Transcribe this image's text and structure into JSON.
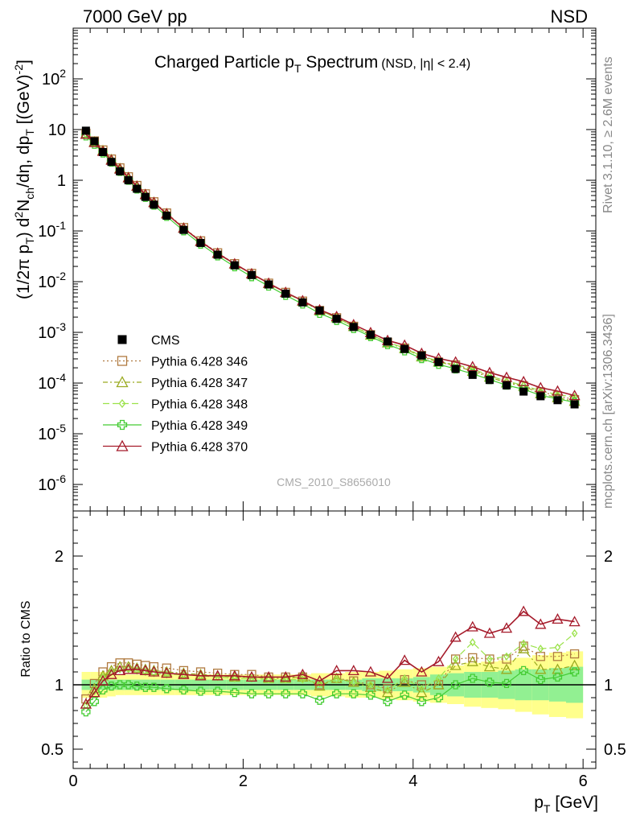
{
  "header": {
    "left": "7000 GeV pp",
    "right": "NSD"
  },
  "side_text": {
    "rivet": "Rivet 3.1.10, ≥ 2.6M events",
    "mcplots": "mcplots.cern.ch [arXiv:1306.3436]"
  },
  "watermark": "CMS_2010_S8656010",
  "chart_data": {
    "type": "scatter",
    "title": {
      "main": "Charged Particle p",
      "sub": "T",
      "rest": " Spectrum",
      "extra": "(NSD, |η| < 2.4)"
    },
    "xlabel": {
      "main": "p",
      "sub": "T",
      "rest": " [GeV]"
    },
    "ylabel": "(1/2π p_T) d²N_ch/dη, dp_T [(GeV)⁻²]",
    "ratio_ylabel": "Ratio to CMS",
    "xlim": [
      0,
      6.15
    ],
    "ylim_log": [
      3e-07,
      1000
    ],
    "ratio_ylim": [
      0.35,
      2.35
    ],
    "x_ticks": [
      0,
      2,
      4,
      6
    ],
    "y_ticks": [
      "10^-6",
      "10^-5",
      "10^-4",
      "10^-3",
      "10^-2",
      "10^-1",
      "1",
      "10",
      "10^2"
    ],
    "ratio_ticks": [
      "0.5",
      "1",
      "2"
    ],
    "x": [
      0.15,
      0.25,
      0.35,
      0.45,
      0.55,
      0.65,
      0.75,
      0.85,
      0.95,
      1.1,
      1.3,
      1.5,
      1.7,
      1.9,
      2.1,
      2.3,
      2.5,
      2.7,
      2.9,
      3.1,
      3.3,
      3.5,
      3.7,
      3.9,
      4.1,
      4.3,
      4.5,
      4.7,
      4.9,
      5.1,
      5.3,
      5.5,
      5.7,
      5.9
    ],
    "cms": [
      9.5,
      5.9,
      3.6,
      2.3,
      1.5,
      1.0,
      0.68,
      0.47,
      0.33,
      0.2,
      0.105,
      0.058,
      0.034,
      0.021,
      0.0135,
      0.0088,
      0.0058,
      0.0039,
      0.0027,
      0.00185,
      0.00128,
      0.0009,
      0.00066,
      0.00047,
      0.00035,
      0.00026,
      0.00019,
      0.000145,
      0.000115,
      9e-05,
      6.8e-05,
      5.5e-05,
      4.6e-05,
      3.8e-05
    ],
    "band_yellow": [
      0.1,
      0.1,
      0.1,
      0.09,
      0.08,
      0.08,
      0.08,
      0.08,
      0.08,
      0.08,
      0.08,
      0.08,
      0.08,
      0.08,
      0.08,
      0.08,
      0.08,
      0.08,
      0.09,
      0.09,
      0.1,
      0.1,
      0.11,
      0.12,
      0.13,
      0.14,
      0.15,
      0.17,
      0.18,
      0.19,
      0.21,
      0.23,
      0.25,
      0.26
    ],
    "band_green": [
      0.04,
      0.04,
      0.04,
      0.04,
      0.04,
      0.04,
      0.04,
      0.04,
      0.04,
      0.04,
      0.04,
      0.04,
      0.04,
      0.04,
      0.04,
      0.04,
      0.04,
      0.04,
      0.04,
      0.04,
      0.04,
      0.05,
      0.05,
      0.05,
      0.06,
      0.08,
      0.09,
      0.1,
      0.1,
      0.11,
      0.12,
      0.12,
      0.13,
      0.14
    ],
    "series": [
      {
        "name": "Pythia 6.428 346",
        "color": "#b07a40",
        "marker": "square",
        "dash": "2,3",
        "ratio": [
          0.89,
          1.01,
          1.1,
          1.14,
          1.17,
          1.17,
          1.16,
          1.15,
          1.14,
          1.13,
          1.11,
          1.1,
          1.09,
          1.08,
          1.08,
          1.06,
          1.06,
          1.06,
          1.0,
          1.05,
          1.03,
          1.0,
          0.97,
          1.04,
          1.0,
          1.0,
          1.2,
          1.21,
          1.2,
          1.2,
          1.3,
          1.22,
          1.22,
          1.24
        ]
      },
      {
        "name": "Pythia 6.428 347",
        "color": "#9aaa20",
        "marker": "triangle",
        "dash": "6,3,2,3",
        "ratio": [
          0.85,
          0.97,
          1.07,
          1.11,
          1.14,
          1.14,
          1.13,
          1.12,
          1.11,
          1.1,
          1.09,
          1.08,
          1.07,
          1.06,
          1.06,
          1.05,
          1.05,
          1.06,
          0.99,
          1.05,
          1.02,
          0.98,
          0.94,
          1.02,
          0.94,
          1.0,
          1.15,
          1.18,
          1.14,
          1.12,
          1.28,
          1.12,
          1.12,
          1.15
        ]
      },
      {
        "name": "Pythia 6.428 348",
        "color": "#9be24a",
        "marker": "diamond",
        "dash": "8,4",
        "ratio": [
          0.84,
          0.95,
          1.06,
          1.1,
          1.12,
          1.12,
          1.11,
          1.1,
          1.09,
          1.08,
          1.08,
          1.07,
          1.06,
          1.05,
          1.05,
          1.04,
          1.04,
          1.04,
          1.01,
          1.04,
          1.02,
          1.0,
          0.96,
          1.05,
          0.97,
          1.05,
          1.2,
          1.33,
          1.2,
          1.22,
          1.32,
          1.28,
          1.29,
          1.4
        ]
      },
      {
        "name": "Pythia 6.428 349",
        "color": "#44cc33",
        "marker": "cross",
        "dash": "",
        "ratio": [
          0.79,
          0.87,
          0.96,
          0.99,
          1.0,
          1.0,
          0.99,
          0.98,
          0.98,
          0.97,
          0.96,
          0.95,
          0.95,
          0.94,
          0.93,
          0.93,
          0.93,
          0.93,
          0.88,
          0.93,
          0.93,
          0.92,
          0.87,
          0.92,
          0.87,
          0.9,
          1.0,
          1.05,
          1.02,
          1.01,
          1.11,
          1.04,
          1.06,
          1.1
        ]
      },
      {
        "name": "Pythia 6.428 370",
        "color": "#a51a2a",
        "marker": "triangle",
        "dash": "",
        "ratio": [
          0.85,
          0.94,
          1.03,
          1.08,
          1.11,
          1.12,
          1.12,
          1.11,
          1.1,
          1.09,
          1.08,
          1.07,
          1.07,
          1.07,
          1.06,
          1.06,
          1.06,
          1.08,
          1.03,
          1.11,
          1.11,
          1.1,
          1.05,
          1.19,
          1.1,
          1.18,
          1.37,
          1.45,
          1.4,
          1.44,
          1.57,
          1.47,
          1.51,
          1.49
        ]
      }
    ]
  }
}
